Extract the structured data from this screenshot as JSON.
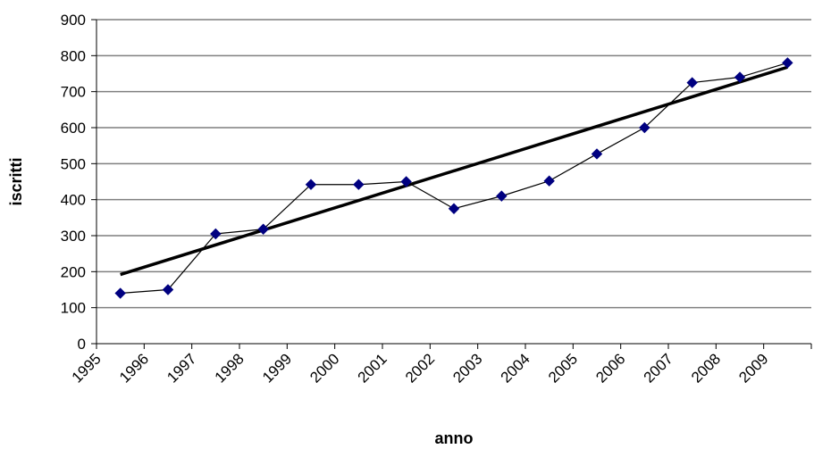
{
  "chart_data": {
    "type": "line",
    "title": "",
    "xlabel": "anno",
    "ylabel": "iscritti",
    "x_ticks": [
      "1995",
      "1996",
      "1997",
      "1998",
      "1999",
      "2000",
      "2001",
      "2002",
      "2003",
      "2004",
      "2005",
      "2006",
      "2007",
      "2008",
      "2009"
    ],
    "x_range": [
      1995,
      2010
    ],
    "ylim": [
      0,
      900
    ],
    "y_ticks": [
      0,
      100,
      200,
      300,
      400,
      500,
      600,
      700,
      800,
      900
    ],
    "grid": "horizontal",
    "legend": "none",
    "series": [
      {
        "type": "line-marker",
        "color": "#000080",
        "marker": "diamond",
        "x": [
          1995.5,
          1996.5,
          1997.5,
          1998.5,
          1999.5,
          2000.5,
          2001.5,
          2002.5,
          2003.5,
          2004.5,
          2005.5,
          2006.5,
          2007.5,
          2008.5,
          2009.5
        ],
        "y": [
          140,
          150,
          305,
          318,
          442,
          442,
          450,
          375,
          410,
          452,
          527,
          600,
          725,
          740,
          780
        ]
      },
      {
        "type": "trendline",
        "color": "#000000",
        "x": [
          1995.5,
          2009.5
        ],
        "y": [
          192,
          768
        ]
      }
    ]
  }
}
